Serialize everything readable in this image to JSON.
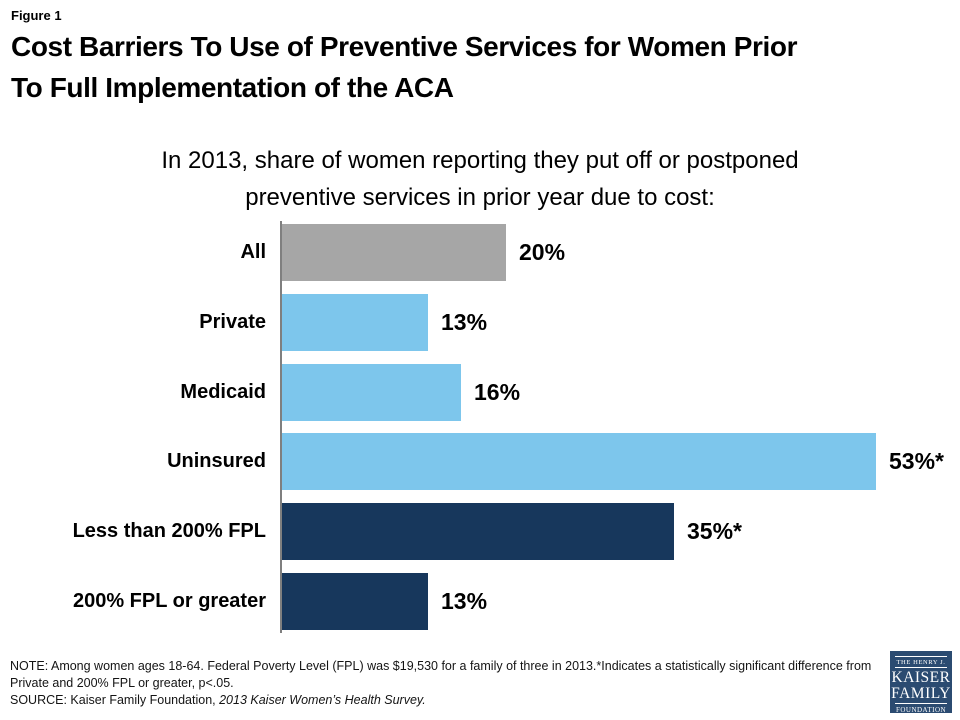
{
  "figure_label": "Figure 1",
  "title_lines": [
    "Cost Barriers To Use of Preventive Services for Women Prior",
    "To Full Implementation of the ACA"
  ],
  "subtitle_lines": [
    "In 2013, share of women reporting they put off or postponed",
    "preventive services in prior year due to cost:"
  ],
  "chart_data": {
    "type": "bar",
    "orientation": "horizontal",
    "title": "Cost Barriers To Use of Preventive Services for Women Prior To Full Implementation of the ACA",
    "subtitle": "In 2013, share of women reporting they put off or postponed preventive services in prior year due to cost:",
    "categories": [
      "All",
      "Private",
      "Medicaid",
      "Uninsured",
      "Less than 200% FPL",
      "200% FPL or greater"
    ],
    "values": [
      20,
      13,
      16,
      53,
      35,
      13
    ],
    "value_labels": [
      "20%",
      "13%",
      "16%",
      "53%*",
      "35%*",
      "13%"
    ],
    "bar_colors": [
      "#A6A6A6",
      "#7DC6EC",
      "#7DC6EC",
      "#7DC6EC",
      "#17375C",
      "#17375C"
    ],
    "xlim": [
      0,
      58
    ],
    "unit": "percent",
    "grid": false,
    "legend": false,
    "axis_color": "#7F7F7F",
    "colors": {
      "gray": "#A6A6A6",
      "light_blue": "#7DC6EC",
      "navy": "#17375C"
    }
  },
  "note": {
    "text": "NOTE: Among women ages 18-64.  Federal Poverty Level (FPL) was $19,530 for a family of three in 2013.*Indicates a statistically significant difference from Private and 200% FPL or greater, p<.05.",
    "source_prefix": "SOURCE: Kaiser Family Foundation, ",
    "source_italic": "2013 Kaiser Women’s Health Survey."
  },
  "logo": {
    "line1": "THE HENRY J.",
    "line2": "KAISER",
    "line3": "FAMILY",
    "line4": "FOUNDATION",
    "bg_color": "#2B4B71"
  }
}
